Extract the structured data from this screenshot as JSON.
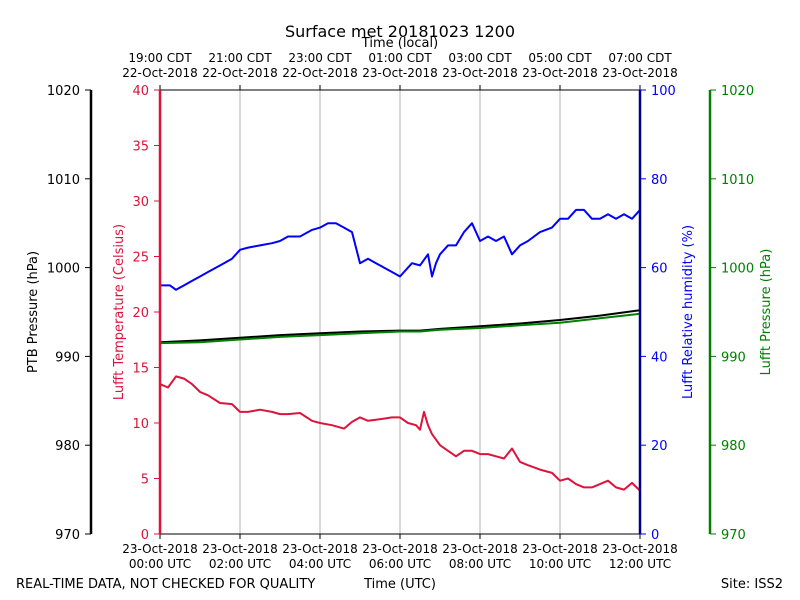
{
  "chart_data": {
    "type": "line",
    "title": "Surface met 20181023 1200",
    "top_axis_label": "Time (local)",
    "top_ticks": [
      {
        "line1": "19:00 CDT",
        "line2": "22-Oct-2018",
        "hour": 0
      },
      {
        "line1": "21:00 CDT",
        "line2": "22-Oct-2018",
        "hour": 2
      },
      {
        "line1": "23:00 CDT",
        "line2": "22-Oct-2018",
        "hour": 4
      },
      {
        "line1": "01:00 CDT",
        "line2": "23-Oct-2018",
        "hour": 6
      },
      {
        "line1": "03:00 CDT",
        "line2": "23-Oct-2018",
        "hour": 8
      },
      {
        "line1": "05:00 CDT",
        "line2": "23-Oct-2018",
        "hour": 10
      },
      {
        "line1": "07:00 CDT",
        "line2": "23-Oct-2018",
        "hour": 12
      }
    ],
    "bottom_ticks": [
      {
        "line1": "23-Oct-2018",
        "line2": "00:00 UTC",
        "hour": 0
      },
      {
        "line1": "23-Oct-2018",
        "line2": "02:00 UTC",
        "hour": 2
      },
      {
        "line1": "23-Oct-2018",
        "line2": "04:00 UTC",
        "hour": 4
      },
      {
        "line1": "23-Oct-2018",
        "line2": "06:00 UTC",
        "hour": 6
      },
      {
        "line1": "23-Oct-2018",
        "line2": "08:00 UTC",
        "hour": 8
      },
      {
        "line1": "23-Oct-2018",
        "line2": "10:00 UTC",
        "hour": 10
      },
      {
        "line1": "23-Oct-2018",
        "line2": "12:00 UTC",
        "hour": 12
      }
    ],
    "xlim": [
      0,
      12
    ],
    "grid_hours": [
      2,
      4,
      6,
      8,
      10
    ],
    "axes": {
      "ptb_pressure": {
        "label": "PTB Pressure (hPa)",
        "ylim": [
          970,
          1020
        ],
        "ticks": [
          970,
          980,
          990,
          1000,
          1010,
          1020
        ],
        "color": "#000000"
      },
      "temperature": {
        "label": "Lufft Temperature (Celsius)",
        "ylim": [
          0,
          40
        ],
        "ticks": [
          0,
          5,
          10,
          15,
          20,
          25,
          30,
          35,
          40
        ],
        "color": "#dc143c"
      },
      "humidity": {
        "label": "Lufft Relative humidity (%)",
        "ylim": [
          0,
          100
        ],
        "ticks": [
          0,
          20,
          40,
          60,
          80,
          100
        ],
        "color": "#0000ff"
      },
      "lufft_pressure": {
        "label": "Lufft Pressure (hPa)",
        "ylim": [
          970,
          1020
        ],
        "ticks": [
          970,
          980,
          990,
          1000,
          1010,
          1020
        ],
        "color": "#008000"
      }
    },
    "series": [
      {
        "name": "Lufft Relative humidity",
        "axis": "humidity",
        "color": "#0000ff",
        "x": [
          0,
          0.25,
          0.4,
          0.6,
          0.8,
          1.0,
          1.2,
          1.4,
          1.6,
          1.8,
          2.0,
          2.2,
          2.5,
          2.8,
          3.0,
          3.2,
          3.5,
          3.8,
          4.0,
          4.2,
          4.4,
          4.6,
          4.8,
          5.0,
          5.2,
          5.4,
          5.6,
          5.8,
          6.0,
          6.1,
          6.3,
          6.5,
          6.7,
          6.8,
          6.9,
          7.0,
          7.2,
          7.4,
          7.6,
          7.8,
          8.0,
          8.2,
          8.4,
          8.6,
          8.8,
          9.0,
          9.2,
          9.5,
          9.8,
          10.0,
          10.2,
          10.4,
          10.6,
          10.8,
          11.0,
          11.2,
          11.4,
          11.6,
          11.8,
          12.0
        ],
        "values": [
          56,
          56,
          55,
          56,
          57,
          58,
          59,
          60,
          61,
          62,
          64,
          64.5,
          65,
          65.5,
          66,
          67,
          67,
          68.5,
          69,
          70,
          70,
          69,
          68,
          61,
          62,
          61,
          60,
          59,
          58,
          59,
          61,
          60.5,
          63,
          58,
          61,
          63,
          65,
          65,
          68,
          70,
          66,
          67,
          66,
          67,
          63,
          65,
          66,
          68,
          69,
          71,
          71,
          73,
          73,
          71,
          71,
          72,
          71,
          72,
          71,
          73
        ]
      },
      {
        "name": "PTB Pressure",
        "axis": "ptb_pressure",
        "color": "#000000",
        "x": [
          0,
          1,
          2,
          3,
          4,
          5,
          6,
          6.5,
          7,
          8,
          9,
          10,
          11,
          12
        ],
        "values": [
          991.6,
          991.8,
          992.1,
          992.4,
          992.6,
          992.8,
          992.9,
          992.9,
          993.1,
          993.4,
          993.7,
          994.1,
          994.6,
          995.2
        ]
      },
      {
        "name": "Lufft Pressure",
        "axis": "lufft_pressure",
        "color": "#008000",
        "x": [
          0,
          1,
          2,
          3,
          4,
          5,
          6,
          6.5,
          7,
          8,
          9,
          10,
          11,
          12
        ],
        "values": [
          991.5,
          991.6,
          991.9,
          992.2,
          992.4,
          992.6,
          992.8,
          992.8,
          993.0,
          993.2,
          993.5,
          993.8,
          994.3,
          994.8
        ]
      },
      {
        "name": "Lufft Temperature",
        "axis": "temperature",
        "color": "#dc143c",
        "x": [
          0,
          0.2,
          0.4,
          0.6,
          0.8,
          1.0,
          1.2,
          1.5,
          1.8,
          2.0,
          2.2,
          2.5,
          2.8,
          3.0,
          3.2,
          3.5,
          3.8,
          4.0,
          4.3,
          4.6,
          4.8,
          5.0,
          5.2,
          5.4,
          5.6,
          5.8,
          6.0,
          6.2,
          6.4,
          6.5,
          6.6,
          6.7,
          6.8,
          7.0,
          7.2,
          7.4,
          7.6,
          7.8,
          8.0,
          8.2,
          8.4,
          8.6,
          8.8,
          9.0,
          9.2,
          9.5,
          9.8,
          10.0,
          10.2,
          10.4,
          10.6,
          10.8,
          11.0,
          11.2,
          11.4,
          11.6,
          11.8,
          12.0
        ],
        "values": [
          13.5,
          13.2,
          14.2,
          14.0,
          13.5,
          12.8,
          12.5,
          11.8,
          11.7,
          11.0,
          11.0,
          11.2,
          11.0,
          10.8,
          10.8,
          10.9,
          10.2,
          10.0,
          9.8,
          9.5,
          10.1,
          10.5,
          10.2,
          10.3,
          10.4,
          10.5,
          10.5,
          10.0,
          9.8,
          9.4,
          11.0,
          9.8,
          9.0,
          8.0,
          7.5,
          7.0,
          7.5,
          7.5,
          7.2,
          7.2,
          7.0,
          6.8,
          7.7,
          6.5,
          6.2,
          5.8,
          5.5,
          4.8,
          5.0,
          4.5,
          4.2,
          4.2,
          4.5,
          4.8,
          4.2,
          4.0,
          4.6,
          3.9
        ]
      }
    ]
  },
  "footer": {
    "left": "REAL-TIME DATA, NOT CHECKED FOR QUALITY",
    "center": "Time (UTC)",
    "right": "Site: ISS2"
  }
}
